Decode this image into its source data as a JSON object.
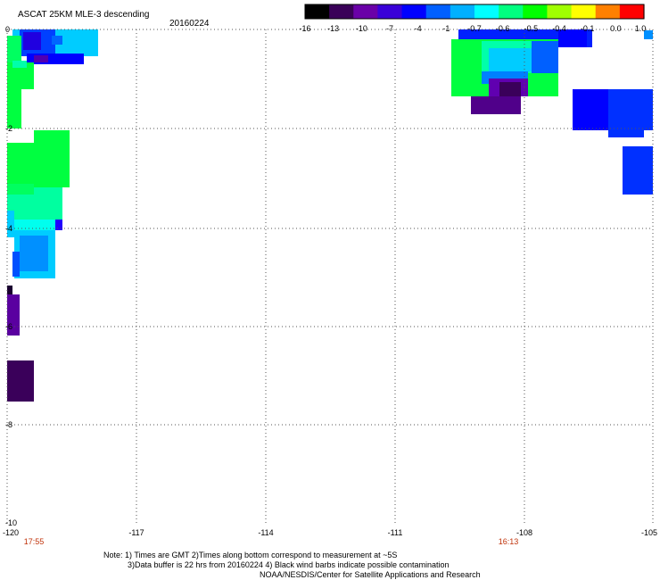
{
  "header": {
    "title": "ASCAT 25KM MLE-3 descending",
    "date": "20160224"
  },
  "colorbar": {
    "labels": [
      "-16",
      "-13",
      "-10",
      "-7",
      "-4",
      "-1",
      "-0.7",
      "-0.6",
      "-0.5",
      "-0.4",
      "-0.1",
      "0.0",
      "1.0"
    ],
    "colors": [
      "#000000",
      "#3a0058",
      "#6a00a8",
      "#3a00d8",
      "#0000ff",
      "#0060ff",
      "#00b0ff",
      "#00ffff",
      "#00ff80",
      "#00ff00",
      "#a0ff00",
      "#ffff00",
      "#ff8000",
      "#ff0000"
    ]
  },
  "axes": {
    "y_labels": [
      "0",
      "-2",
      "-4",
      "-6",
      "-8",
      "-10"
    ],
    "x_labels": [
      "-120",
      "-117",
      "-114",
      "-111",
      "-108",
      "-105"
    ]
  },
  "times": {
    "left": "17:55",
    "right": "16:13"
  },
  "notes": {
    "line1": "Note: 1) Times are GMT 2)Times along bottom correspond to measurement at ~5S",
    "line2": "3)Data buffer is 22 hrs from 20160224 4) Black wind barbs indicate possible contamination",
    "line3": "NOAA/NESDIS/Center for Satellite Applications and Research"
  }
}
